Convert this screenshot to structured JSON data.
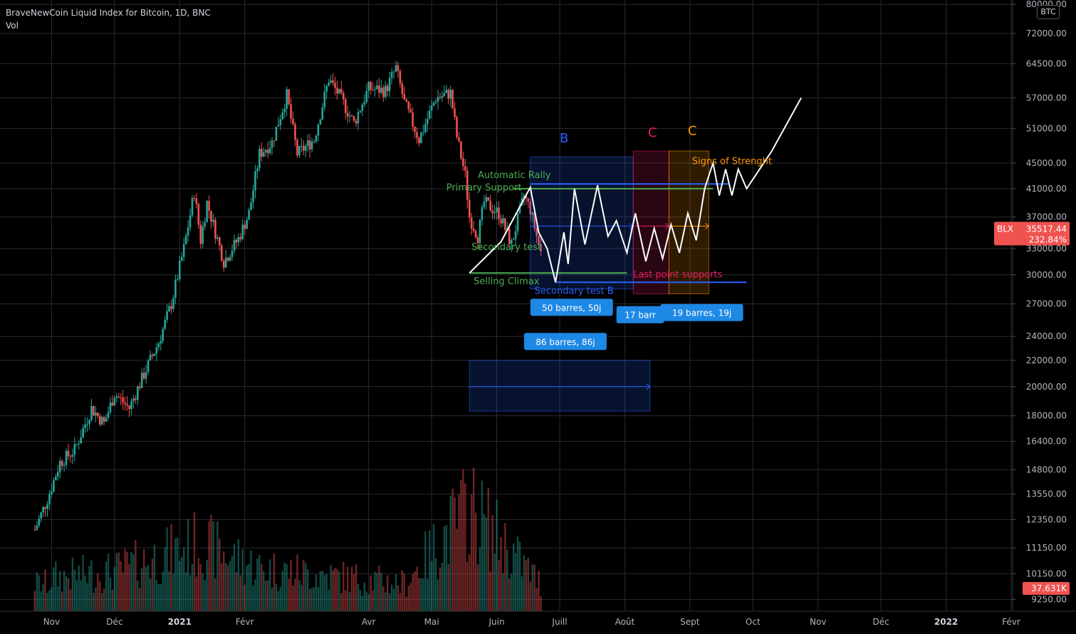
{
  "header": {
    "title": "BraveNewCoin Liquid Index for Bitcoin, 1D, BNC",
    "vol_label": "Vol",
    "currency_badge": "BTC"
  },
  "colors": {
    "background": "#000000",
    "grid": "#2a2a33",
    "up": "#26a69a",
    "down": "#ef5350",
    "white_path": "#ffffff",
    "green_lines": "#4caf50",
    "blue_lines": "#2962ff",
    "label_blue": "#1e88e5",
    "zone_b": "#0d2a42",
    "zone_c_red": "#5a0f2a",
    "zone_c_orange": "#6b3d00"
  },
  "chart_data": {
    "type": "candlestick",
    "title": "BraveNewCoin Liquid Index for Bitcoin, 1D, BNC",
    "y_scale": "log",
    "ylim": [
      9000,
      80000
    ],
    "y_ticks": [
      "80000.00",
      "72000.00",
      "64500.00",
      "57000.00",
      "51000.00",
      "45000.00",
      "41000.00",
      "37000.00",
      "33000.00",
      "30000.00",
      "27000.00",
      "24000.00",
      "22000.00",
      "20000.00",
      "18000.00",
      "16400.00",
      "14800.00",
      "13550.00",
      "12350.00",
      "11150.00",
      "10150.00",
      "9250.00"
    ],
    "x_ticks": [
      {
        "label": "Nov",
        "bold": false
      },
      {
        "label": "Déc",
        "bold": false
      },
      {
        "label": "2021",
        "bold": true
      },
      {
        "label": "Févr",
        "bold": false
      },
      {
        "label": "Avr",
        "bold": false
      },
      {
        "label": "Mai",
        "bold": false
      },
      {
        "label": "Juin",
        "bold": false
      },
      {
        "label": "Juill",
        "bold": false
      },
      {
        "label": "Août",
        "bold": false
      },
      {
        "label": "Sept",
        "bold": false
      },
      {
        "label": "Oct",
        "bold": false
      },
      {
        "label": "Nov",
        "bold": false
      },
      {
        "label": "Déc",
        "bold": false
      },
      {
        "label": "2022",
        "bold": true
      },
      {
        "label": "Févr",
        "bold": false
      }
    ],
    "price_path": [
      [
        "2020-10-24",
        11900
      ],
      [
        "2020-10-30",
        13300
      ],
      [
        "2020-11-05",
        15200
      ],
      [
        "2020-11-12",
        15900
      ],
      [
        "2020-11-20",
        18500
      ],
      [
        "2020-11-26",
        17500
      ],
      [
        "2020-12-01",
        19500
      ],
      [
        "2020-12-08",
        18500
      ],
      [
        "2020-12-16",
        21300
      ],
      [
        "2020-12-22",
        23500
      ],
      [
        "2020-12-28",
        27000
      ],
      [
        "2021-01-03",
        33000
      ],
      [
        "2021-01-08",
        40500
      ],
      [
        "2021-01-11",
        34000
      ],
      [
        "2021-01-14",
        39000
      ],
      [
        "2021-01-22",
        31500
      ],
      [
        "2021-01-29",
        34200
      ],
      [
        "2021-02-03",
        37500
      ],
      [
        "2021-02-08",
        46500
      ],
      [
        "2021-02-14",
        48500
      ],
      [
        "2021-02-21",
        57500
      ],
      [
        "2021-02-26",
        46500
      ],
      [
        "2021-03-06",
        49000
      ],
      [
        "2021-03-13",
        61000
      ],
      [
        "2021-03-18",
        57500
      ],
      [
        "2021-03-25",
        52000
      ],
      [
        "2021-04-01",
        59000
      ],
      [
        "2021-04-09",
        58500
      ],
      [
        "2021-04-14",
        63500
      ],
      [
        "2021-04-18",
        56000
      ],
      [
        "2021-04-25",
        49000
      ],
      [
        "2021-05-03",
        57000
      ],
      [
        "2021-05-10",
        58000
      ],
      [
        "2021-05-13",
        49500
      ],
      [
        "2021-05-17",
        43000
      ],
      [
        "2021-05-19",
        37000
      ],
      [
        "2021-05-23",
        34500
      ],
      [
        "2021-05-26",
        39000
      ],
      [
        "2021-06-02",
        37500
      ],
      [
        "2021-06-08",
        33500
      ],
      [
        "2021-06-14",
        40000
      ],
      [
        "2021-06-17",
        38000
      ],
      [
        "2021-06-22",
        32500
      ]
    ],
    "volume": [
      [
        "2020-11-01",
        1100
      ],
      [
        "2020-12-01",
        1300
      ],
      [
        "2021-01-11",
        2200
      ],
      [
        "2021-02-08",
        1400
      ],
      [
        "2021-04-18",
        900
      ],
      [
        "2021-05-19",
        3400
      ],
      [
        "2021-06-22",
        900
      ]
    ],
    "volume_ylim": [
      0,
      4000
    ],
    "projection_path": [
      [
        "2021-05-19",
        30200
      ],
      [
        "2021-06-03",
        33800
      ],
      [
        "2021-06-17",
        41200
      ],
      [
        "2021-06-21",
        35000
      ],
      [
        "2021-06-25",
        33000
      ],
      [
        "2021-06-29",
        29200
      ],
      [
        "2021-07-03",
        35000
      ],
      [
        "2021-07-05",
        31200
      ],
      [
        "2021-07-08",
        41000
      ],
      [
        "2021-07-13",
        33500
      ],
      [
        "2021-07-19",
        41500
      ],
      [
        "2021-07-24",
        34500
      ],
      [
        "2021-07-28",
        36500
      ],
      [
        "2021-08-02",
        32500
      ],
      [
        "2021-08-06",
        37500
      ],
      [
        "2021-08-11",
        31500
      ],
      [
        "2021-08-15",
        35500
      ],
      [
        "2021-08-19",
        31800
      ],
      [
        "2021-08-23",
        36000
      ],
      [
        "2021-08-27",
        32500
      ],
      [
        "2021-08-31",
        37500
      ],
      [
        "2021-09-04",
        34000
      ],
      [
        "2021-09-08",
        41000
      ],
      [
        "2021-09-12",
        45000
      ],
      [
        "2021-09-15",
        40000
      ],
      [
        "2021-09-18",
        44000
      ],
      [
        "2021-09-21",
        40000
      ],
      [
        "2021-09-24",
        44000
      ],
      [
        "2021-09-28",
        41000
      ],
      [
        "2021-10-10",
        47000
      ],
      [
        "2021-10-24",
        57000
      ]
    ],
    "zones": [
      {
        "label": "B",
        "color": "#2962ff",
        "x0": "2021-06-17",
        "x1": "2021-08-05",
        "y0": 28500,
        "y1": 46000
      },
      {
        "label": "C",
        "color": "#e91e63",
        "x0": "2021-08-05",
        "x1": "2021-08-22",
        "y0": 28000,
        "y1": 47000
      },
      {
        "label": "C",
        "color": "#ff9800",
        "x0": "2021-08-22",
        "x1": "2021-09-10",
        "y0": 28000,
        "y1": 47000
      },
      {
        "label": "",
        "color": "#2962ff",
        "x0": "2021-05-19",
        "x1": "2021-08-13",
        "y0": 18300,
        "y1": 22000
      }
    ],
    "horizontal_lines": [
      {
        "color": "#4caf50",
        "x0": "2021-06-09",
        "x1": "2021-09-12",
        "y": 41000
      },
      {
        "color": "#2962ff",
        "x0": "2021-06-17",
        "x1": "2021-09-20",
        "y": 41700
      },
      {
        "color": "#4caf50",
        "x0": "2021-05-19",
        "x1": "2021-08-02",
        "y": 30200
      },
      {
        "color": "#2962ff",
        "x0": "2021-06-29",
        "x1": "2021-09-28",
        "y": 29200
      }
    ],
    "arrows": [
      {
        "color": "#2962ff",
        "x0": "2021-06-17",
        "x1": "2021-08-05",
        "y": 35800
      },
      {
        "color": "#e91e63",
        "x0": "2021-08-05",
        "x1": "2021-08-22",
        "y": 35800
      },
      {
        "color": "#ff9800",
        "x0": "2021-08-22",
        "x1": "2021-09-10",
        "y": 35800
      },
      {
        "color": "#2962ff",
        "x0": "2021-05-19",
        "x1": "2021-08-13",
        "y": 20000
      }
    ],
    "annotations": [
      {
        "text": "B",
        "color": "#2962ff",
        "x": "2021-07-01",
        "y": 48500,
        "size": 18
      },
      {
        "text": "C",
        "color": "#e91e63",
        "x": "2021-08-12",
        "y": 49500,
        "size": 18
      },
      {
        "text": "C",
        "color": "#ff9800",
        "x": "2021-08-31",
        "y": 49800,
        "size": 18
      },
      {
        "text": "Signs of Strenght",
        "color": "#ff9800",
        "x": "2021-09-02",
        "y": 44800,
        "size": 13
      },
      {
        "text": "Automatic Rally",
        "color": "#4caf50",
        "x": "2021-05-23",
        "y": 42600,
        "size": 13
      },
      {
        "text": "Primary Support",
        "color": "#4caf50",
        "x": "2021-05-08",
        "y": 40700,
        "size": 13
      },
      {
        "text": "Secondary test",
        "color": "#4caf50",
        "x": "2021-05-20",
        "y": 32800,
        "size": 13
      },
      {
        "text": "Selling Climax",
        "color": "#4caf50",
        "x": "2021-05-21",
        "y": 29000,
        "size": 13
      },
      {
        "text": "Last point supports",
        "color": "#e91e63",
        "x": "2021-08-05",
        "y": 29700,
        "size": 13
      },
      {
        "text": "Secondary test B",
        "color": "#2962ff",
        "x": "2021-06-19",
        "y": 28000,
        "size": 13
      }
    ],
    "measure_labels": [
      {
        "text": "50 barres, 50j",
        "x": "2021-06-17",
        "y": 26600
      },
      {
        "text": "17 barr",
        "x": "2021-07-28",
        "y": 25900
      },
      {
        "text": "19 barres, 19j",
        "x": "2021-08-18",
        "y": 26100
      },
      {
        "text": "86 barres, 86j",
        "x": "2021-06-14",
        "y": 23500
      }
    ],
    "price_labels": [
      {
        "line1": "BLX",
        "line2": "35517.44",
        "line3": "232.84%",
        "y": 35517.44
      },
      {
        "line1": "37.631K",
        "y_volume": 37.631
      }
    ]
  }
}
